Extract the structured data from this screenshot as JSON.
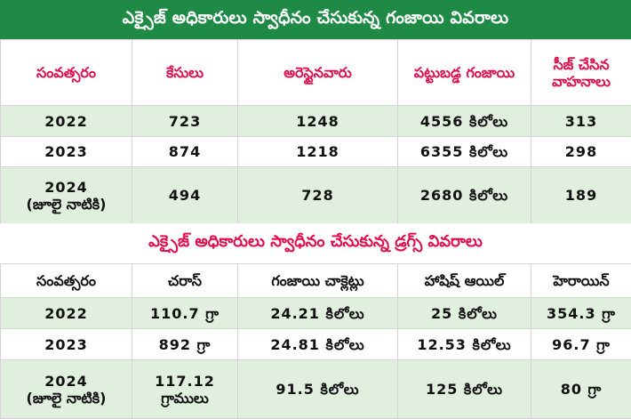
{
  "banner_excise_ganja": "ఎక్సైజ్ అధికారులు స్వాధీనం చేసుకున్న గంజాయి వివరాలు",
  "table_ganja": {
    "headers": [
      "సంవత్సరం",
      "కేసులు",
      "అరెస్టైనవారు",
      "పట్టుబడ్డ గంజాయి",
      "సీజ్ చేసిన వాహనాలు"
    ],
    "rows": [
      {
        "year": "2022",
        "cases": "723",
        "arrested": "1248",
        "ganja": "4556 కిలోలు",
        "vehicles": "313"
      },
      {
        "year": "2023",
        "cases": "874",
        "arrested": "1218",
        "ganja": "6355 కిలోలు",
        "vehicles": "298"
      },
      {
        "year": "2024",
        "year_note": "(జూలై నాటికి)",
        "cases": "494",
        "arrested": "728",
        "ganja": "2680 కిలోలు",
        "vehicles": "189"
      }
    ]
  },
  "banner_excise_drugs": "ఎక్సైజ్ అధికారులు స్వాధీనం చేసుకున్న డ్రగ్స్ వివరాలు",
  "table_drugs": {
    "headers": [
      "సంవత్సరం",
      "చరాస్",
      "గంజాయి చాక్లెట్లు",
      "హాషిష్ ఆయిల్",
      "హెరాయిన్"
    ],
    "rows": [
      {
        "year": "2022",
        "charas": "110.7 గ్రా",
        "chocolates": "24.21 కిలోలు",
        "hashish": "25 కిలోలు",
        "heroin": "354.3 గ్రా"
      },
      {
        "year": "2023",
        "charas": "892 గ్రా",
        "chocolates": "24.81 కిలోలు",
        "hashish": "12.53 కిలోలు",
        "heroin": "96.7 గ్రా"
      },
      {
        "year": "2024",
        "year_note": "(జూలై నాటికి)",
        "charas": "117.12",
        "charas_unit": "గ్రాములు",
        "chocolates": "91.5 కిలోలు",
        "hashish": "125 కిలోలు",
        "heroin": "80 గ్రా"
      }
    ]
  }
}
